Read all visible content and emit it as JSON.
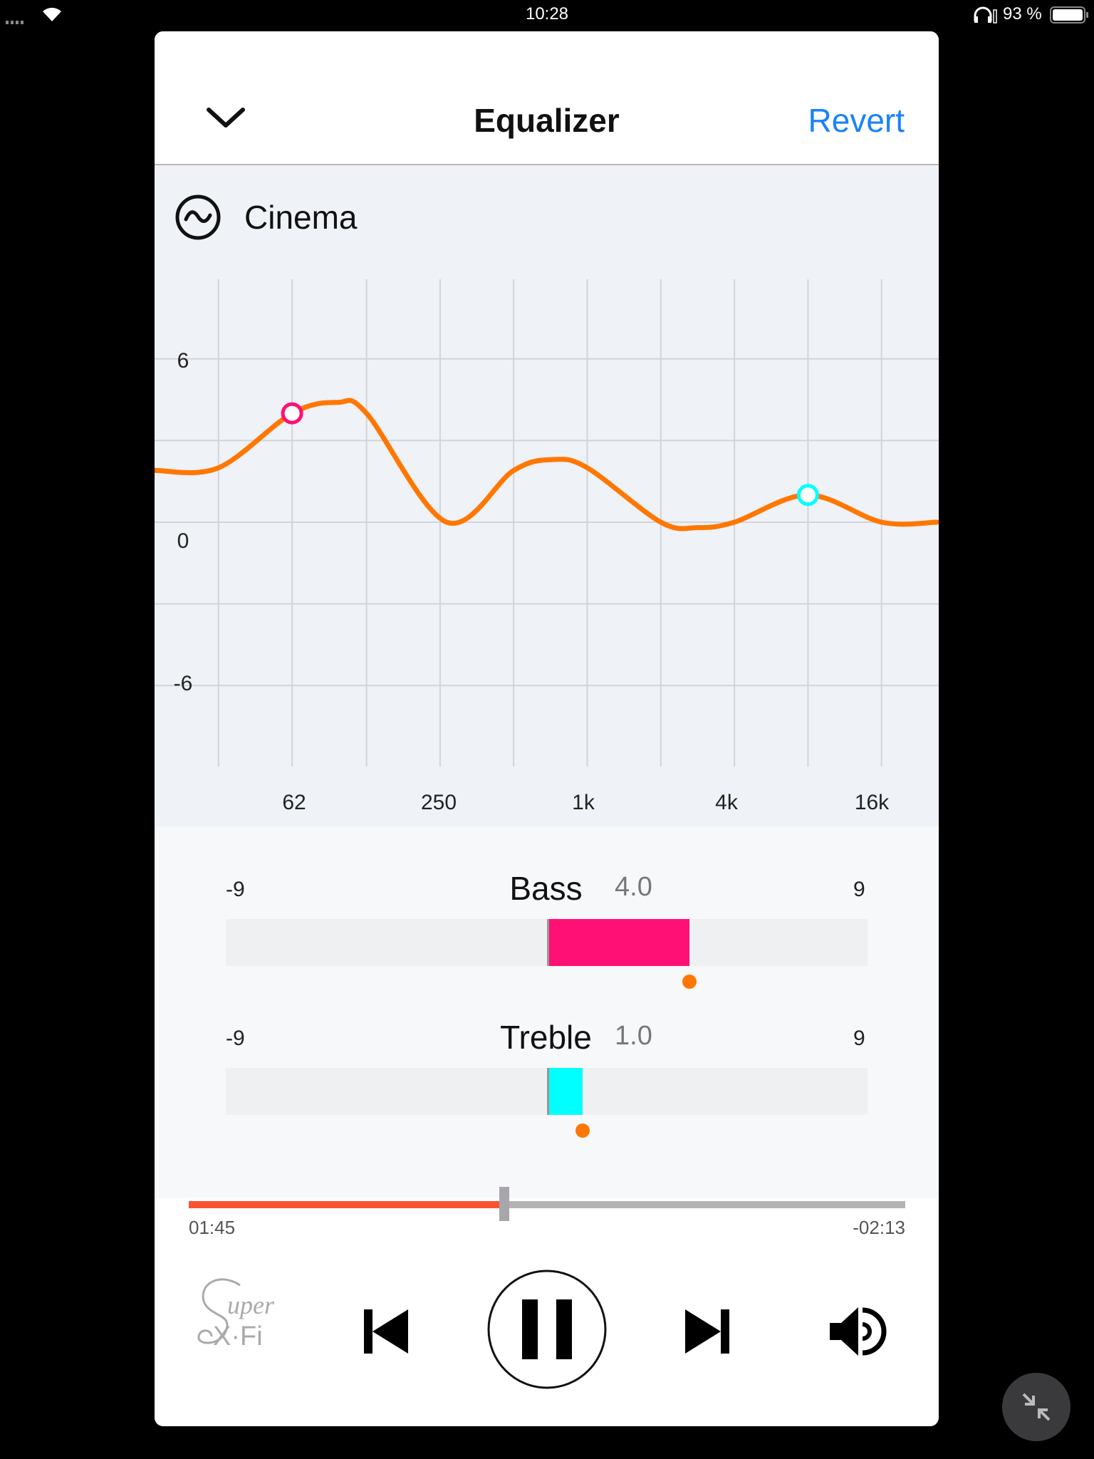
{
  "status_bar": {
    "time": "10:28",
    "battery": "93 %",
    "icons": [
      "signal-icon",
      "wifi-icon",
      "headphones-icon",
      "battery-icon"
    ]
  },
  "header": {
    "title": "Equalizer",
    "revert_label": "Revert",
    "back_icon": "chevron-down-icon"
  },
  "preset": {
    "name": "Cinema",
    "icon": "wave-circle-icon"
  },
  "colors": {
    "accent": "#1a82fb",
    "curve": "#ff7700",
    "bass": "#ff1075",
    "treble": "#00ffff",
    "progress": "#fb5233"
  },
  "chart_data": {
    "type": "line",
    "x_scale": "log",
    "x_ticks": [
      {
        "value": 62,
        "label": "62"
      },
      {
        "value": 250,
        "label": "250"
      },
      {
        "value": 1000,
        "label": "1k"
      },
      {
        "value": 4000,
        "label": "4k"
      },
      {
        "value": 16000,
        "label": "16k"
      }
    ],
    "x_gridlines": [
      31,
      62,
      125,
      250,
      500,
      1000,
      2000,
      4000,
      8000,
      16000
    ],
    "y_ticks": [
      {
        "value": 6,
        "label": "6"
      },
      {
        "value": 0,
        "label": "0"
      },
      {
        "value": -6,
        "label": "-6"
      }
    ],
    "y_gridlines": [
      6,
      3,
      0,
      -3,
      -6
    ],
    "grid": true,
    "series": [
      {
        "points": [
          [
            17,
            1.9
          ],
          [
            31,
            2.0
          ],
          [
            62,
            4.0
          ],
          [
            95,
            4.4
          ],
          [
            125,
            4.0
          ],
          [
            266,
            0
          ],
          [
            500,
            1.9
          ],
          [
            717,
            2.3
          ],
          [
            1000,
            2.0
          ],
          [
            2000,
            0
          ],
          [
            2830,
            -0.2
          ],
          [
            4000,
            0
          ],
          [
            8000,
            1.0
          ],
          [
            16000,
            0
          ],
          [
            27000,
            0
          ]
        ]
      }
    ],
    "markers": [
      {
        "freq": 62,
        "db": 4.0,
        "color": "#ff1075"
      },
      {
        "freq": 8000,
        "db": 1.0,
        "color": "#00ffff"
      }
    ]
  },
  "sliders": [
    {
      "name": "Bass",
      "value": 4.0,
      "value_label": "4.0",
      "min": -9,
      "max": 9,
      "min_label": "-9",
      "max_label": "9",
      "color": "#ff1075"
    },
    {
      "name": "Treble",
      "value": 1.0,
      "value_label": "1.0",
      "min": -9,
      "max": 9,
      "min_label": "-9",
      "max_label": "9",
      "color": "#00ffff"
    }
  ],
  "playback": {
    "elapsed": "01:45",
    "remaining": "-02:13",
    "progress": 0.44
  },
  "controls": {
    "logo": "Super X-Fi",
    "icons": [
      "previous-icon",
      "pause-icon",
      "next-icon",
      "volume-icon"
    ]
  },
  "fab_icon": "minimize-icon"
}
